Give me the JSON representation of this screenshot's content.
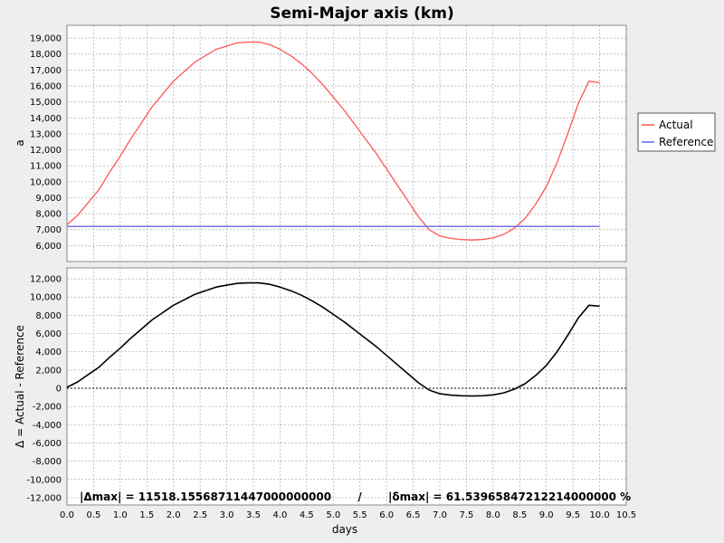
{
  "chart_data": {
    "type": "line",
    "title": "Semi-Major axis (km)",
    "xlabel": "days",
    "xlim": [
      0,
      10.5
    ],
    "x_ticks": [
      "0.0",
      "0.5",
      "1.0",
      "1.5",
      "2.0",
      "2.5",
      "3.0",
      "3.5",
      "4.0",
      "4.5",
      "5.0",
      "5.5",
      "6.0",
      "6.5",
      "7.0",
      "7.5",
      "8.0",
      "8.5",
      "9.0",
      "9.5",
      "10.0",
      "10.5"
    ],
    "grid": true,
    "legend": {
      "placement": "right",
      "entries": [
        "Actual",
        "Reference"
      ]
    },
    "panels": [
      {
        "ylabel": "a",
        "ylim": [
          5000,
          19800
        ],
        "y_ticks": [
          "6,000",
          "7,000",
          "8,000",
          "9,000",
          "10,000",
          "11,000",
          "12,000",
          "13,000",
          "14,000",
          "15,000",
          "16,000",
          "17,000",
          "18,000",
          "19,000"
        ],
        "series": [
          {
            "name": "Actual",
            "color": "#ff5555",
            "x": [
              0.0,
              0.2,
              0.4,
              0.6,
              0.8,
              1.0,
              1.2,
              1.4,
              1.6,
              1.8,
              2.0,
              2.2,
              2.4,
              2.6,
              2.8,
              3.0,
              3.2,
              3.4,
              3.6,
              3.8,
              4.0,
              4.2,
              4.4,
              4.6,
              4.8,
              5.0,
              5.2,
              5.4,
              5.6,
              5.8,
              6.0,
              6.2,
              6.4,
              6.6,
              6.8,
              7.0,
              7.2,
              7.4,
              7.6,
              7.8,
              8.0,
              8.2,
              8.4,
              8.6,
              8.8,
              9.0,
              9.2,
              9.4,
              9.6,
              9.8,
              10.0
            ],
            "values": [
              7300,
              7900,
              8700,
              9500,
              10600,
              11600,
              12700,
              13700,
              14700,
              15500,
              16300,
              16900,
              17500,
              17900,
              18300,
              18500,
              18700,
              18750,
              18750,
              18600,
              18300,
              17900,
              17400,
              16800,
              16100,
              15300,
              14500,
              13600,
              12700,
              11800,
              10800,
              9800,
              8800,
              7800,
              7000,
              6600,
              6450,
              6380,
              6350,
              6380,
              6480,
              6700,
              7100,
              7700,
              8600,
              9700,
              11200,
              13000,
              14900,
              16300,
              16200
            ]
          },
          {
            "name": "Reference",
            "color": "#6666ee",
            "x": [
              0.0,
              10.0
            ],
            "values": [
              7200,
              7200
            ]
          }
        ]
      },
      {
        "ylabel": "Δ = Actual - Reference",
        "ylim": [
          -12800,
          13200
        ],
        "y_ticks": [
          "12,000",
          "10,000",
          "8,000",
          "6,000",
          "4,000",
          "2,000",
          "0",
          "-2,000",
          "-4,000",
          "-6,000",
          "-8,000",
          "-10,000",
          "-12,000"
        ],
        "series": [
          {
            "name": "Δ",
            "color": "#000000",
            "x": [
              0.0,
              0.2,
              0.4,
              0.6,
              0.8,
              1.0,
              1.2,
              1.4,
              1.6,
              1.8,
              2.0,
              2.2,
              2.4,
              2.6,
              2.8,
              3.0,
              3.2,
              3.4,
              3.6,
              3.8,
              4.0,
              4.2,
              4.4,
              4.6,
              4.8,
              5.0,
              5.2,
              5.4,
              5.6,
              5.8,
              6.0,
              6.2,
              6.4,
              6.6,
              6.8,
              7.0,
              7.2,
              7.4,
              7.6,
              7.8,
              8.0,
              8.2,
              8.4,
              8.6,
              8.8,
              9.0,
              9.2,
              9.4,
              9.6,
              9.8,
              10.0
            ],
            "values": [
              100,
              700,
              1500,
              2300,
              3400,
              4400,
              5500,
              6500,
              7500,
              8300,
              9100,
              9700,
              10300,
              10700,
              11100,
              11300,
              11500,
              11550,
              11550,
              11400,
              11100,
              10700,
              10200,
              9600,
              8900,
              8100,
              7300,
              6400,
              5500,
              4600,
              3600,
              2600,
              1600,
              600,
              -200,
              -600,
              -750,
              -820,
              -850,
              -820,
              -720,
              -500,
              -100,
              500,
              1400,
              2500,
              4000,
              5800,
              7700,
              9100,
              9000
            ]
          }
        ],
        "annotation": "|Δmax| = 11518.15568711447000000000       /       |δmax| = 61.53965847212214000000 %"
      }
    ]
  }
}
